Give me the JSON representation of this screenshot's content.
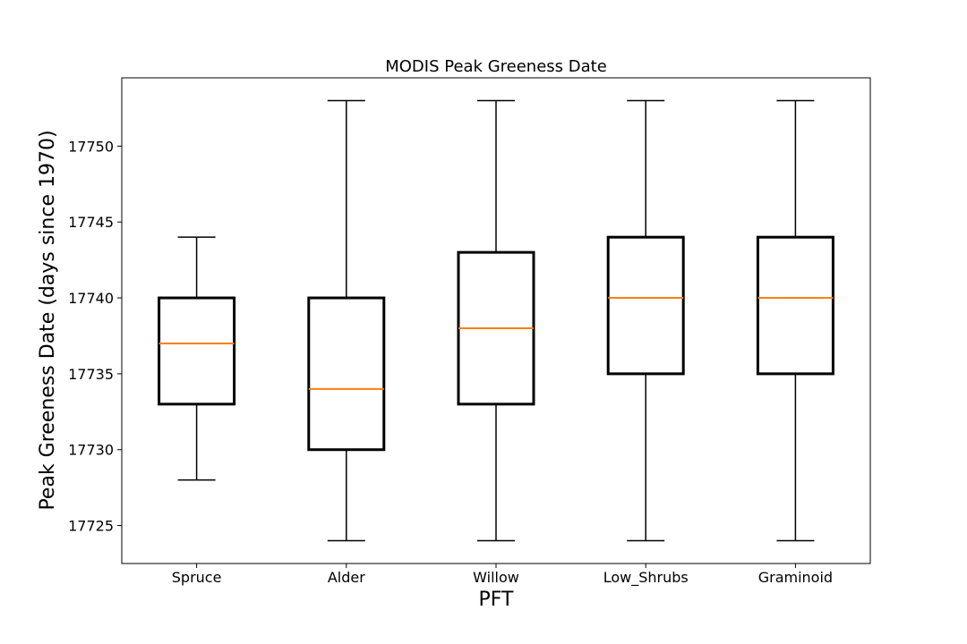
{
  "chart_data": {
    "type": "box",
    "title": "MODIS Peak Greeness Date",
    "xlabel": "PFT",
    "ylabel": "Peak Greeness Date (days since 1970)",
    "ylim": [
      17722.5,
      17754.5
    ],
    "yticks": [
      17725,
      17730,
      17735,
      17740,
      17745,
      17750
    ],
    "grid": false,
    "categories": [
      "Spruce",
      "Alder",
      "Willow",
      "Low_Shrubs",
      "Graminoid"
    ],
    "boxes": [
      {
        "whisker_low": 17728,
        "q1": 17733,
        "median": 17737,
        "q3": 17740,
        "whisker_high": 17744
      },
      {
        "whisker_low": 17724,
        "q1": 17730,
        "median": 17734,
        "q3": 17740,
        "whisker_high": 17753
      },
      {
        "whisker_low": 17724,
        "q1": 17733,
        "median": 17738,
        "q3": 17743,
        "whisker_high": 17753
      },
      {
        "whisker_low": 17724,
        "q1": 17735,
        "median": 17740,
        "q3": 17744,
        "whisker_high": 17753
      },
      {
        "whisker_low": 17724,
        "q1": 17735,
        "median": 17740,
        "q3": 17744,
        "whisker_high": 17753
      }
    ],
    "colors": {
      "box": "#000000",
      "median": "#ff7f0e",
      "whisker": "#000000"
    }
  }
}
